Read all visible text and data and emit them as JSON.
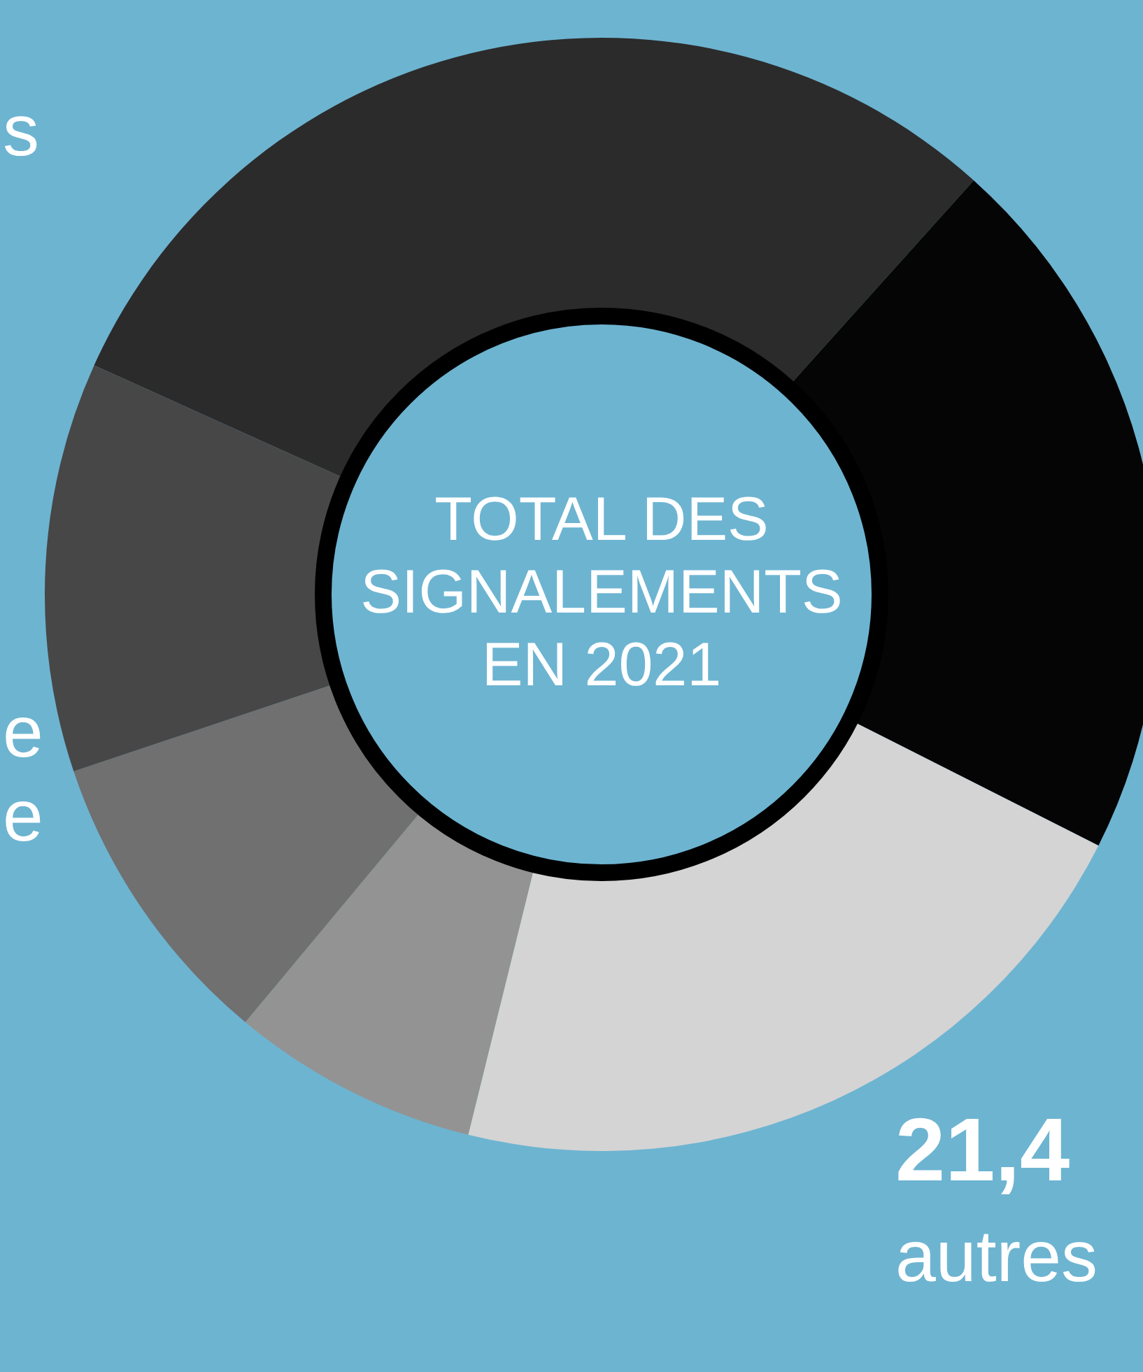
{
  "chart_data": {
    "type": "donut",
    "title": "TOTAL DES\nSIGNALEMENTS\nEN 2021",
    "categories": [
      null,
      null,
      null,
      null,
      null,
      null
    ],
    "values": [
      29.9,
      20.8,
      21.4,
      7.2,
      8.8,
      11.9
    ],
    "colors": [
      "#2b2b2b",
      "#050505",
      "#d4d4d4",
      "#939393",
      "#707070",
      "#474747"
    ],
    "annotations": [
      "21,4",
      "autres",
      "s",
      "e",
      "e"
    ]
  }
}
